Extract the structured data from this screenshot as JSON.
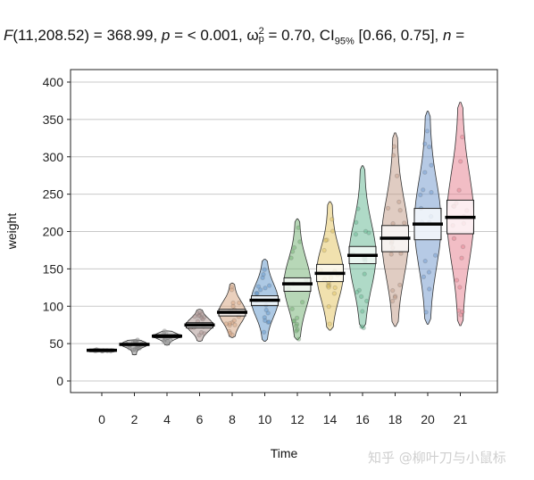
{
  "subtitle": {
    "f_symbol": "F",
    "f_args": "(11,208.52) = 368.99, ",
    "p_symbol": "p",
    "p_text": " = < 0.001, ω",
    "omega_sup": "2",
    "omega_sub": "p",
    "omega_text": " = 0.70, CI",
    "ci_sub": "95%",
    "ci_text": " [0.66, 0.75], ",
    "n_symbol": "n",
    "n_text": " ="
  },
  "watermark": "知乎 @柳叶刀与小鼠标",
  "chart_data": {
    "type": "violin",
    "xlabel": "Time",
    "ylabel": "weight",
    "ylim": [
      0,
      400
    ],
    "yticks": [
      0,
      50,
      100,
      150,
      200,
      250,
      300,
      350,
      400
    ],
    "grid": "horizontal",
    "categories": [
      "0",
      "2",
      "4",
      "6",
      "8",
      "10",
      "12",
      "14",
      "16",
      "18",
      "20",
      "21"
    ],
    "series": [
      {
        "category": "0",
        "min": 39,
        "max": 43,
        "mean": 41,
        "ci": [
          40,
          42
        ],
        "color": "#888888"
      },
      {
        "category": "2",
        "min": 35,
        "max": 55,
        "mean": 49,
        "ci": [
          48,
          50
        ],
        "color": "#888888"
      },
      {
        "category": "4",
        "min": 48,
        "max": 67,
        "mean": 60,
        "ci": [
          58,
          62
        ],
        "color": "#aaaaaa"
      },
      {
        "category": "6",
        "min": 53,
        "max": 96,
        "mean": 75,
        "ci": [
          71,
          78
        ],
        "color": "#a88f8c"
      },
      {
        "category": "8",
        "min": 58,
        "max": 131,
        "mean": 92,
        "ci": [
          87,
          96
        ],
        "color": "#d6a27c"
      },
      {
        "category": "10",
        "min": 53,
        "max": 163,
        "mean": 108,
        "ci": [
          101,
          114
        ],
        "color": "#5b93c9"
      },
      {
        "category": "12",
        "min": 55,
        "max": 217,
        "mean": 130,
        "ci": [
          120,
          138
        ],
        "color": "#6fb06f"
      },
      {
        "category": "14",
        "min": 68,
        "max": 240,
        "mean": 144,
        "ci": [
          133,
          156
        ],
        "color": "#e3c45d"
      },
      {
        "category": "16",
        "min": 71,
        "max": 288,
        "mean": 168,
        "ci": [
          157,
          180
        ],
        "color": "#5fb58f"
      },
      {
        "category": "18",
        "min": 73,
        "max": 332,
        "mean": 191,
        "ci": [
          173,
          208
        ],
        "color": "#c29a86"
      },
      {
        "category": "20",
        "min": 76,
        "max": 361,
        "mean": 210,
        "ci": [
          189,
          231
        ],
        "color": "#6d96cc"
      },
      {
        "category": "21",
        "min": 74,
        "max": 373,
        "mean": 219,
        "ci": [
          197,
          242
        ],
        "color": "#e57c8c"
      }
    ]
  }
}
